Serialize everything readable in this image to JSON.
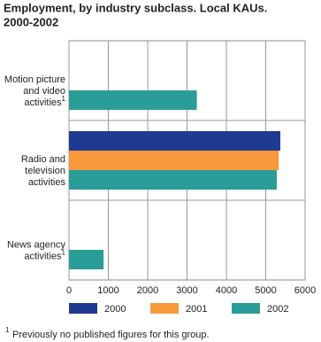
{
  "chart_data": {
    "type": "bar",
    "orientation": "horizontal",
    "title": [
      "Employment, by industry subclass. Local KAUs.",
      "2000-2002"
    ],
    "categories": [
      [
        "Motion picture",
        "and video",
        "activities"
      ],
      [
        "Radio and",
        "television",
        "activities"
      ],
      [
        "News agency",
        "activities"
      ]
    ],
    "category_notes": [
      "1",
      null,
      "1"
    ],
    "series": [
      {
        "name": "2000",
        "color": "#1f3a93",
        "values": [
          null,
          5370,
          null
        ]
      },
      {
        "name": "2001",
        "color": "#f7993a",
        "values": [
          null,
          5330,
          null
        ]
      },
      {
        "name": "2002",
        "color": "#2a9d98",
        "values": [
          3250,
          5280,
          880
        ]
      }
    ],
    "xlim": [
      0,
      6000
    ],
    "xticks": [
      0,
      1000,
      2000,
      3000,
      4000,
      5000,
      6000
    ],
    "grid": true,
    "footnote": {
      "marker": "1",
      "text": "Previously no published figures for this group."
    }
  }
}
